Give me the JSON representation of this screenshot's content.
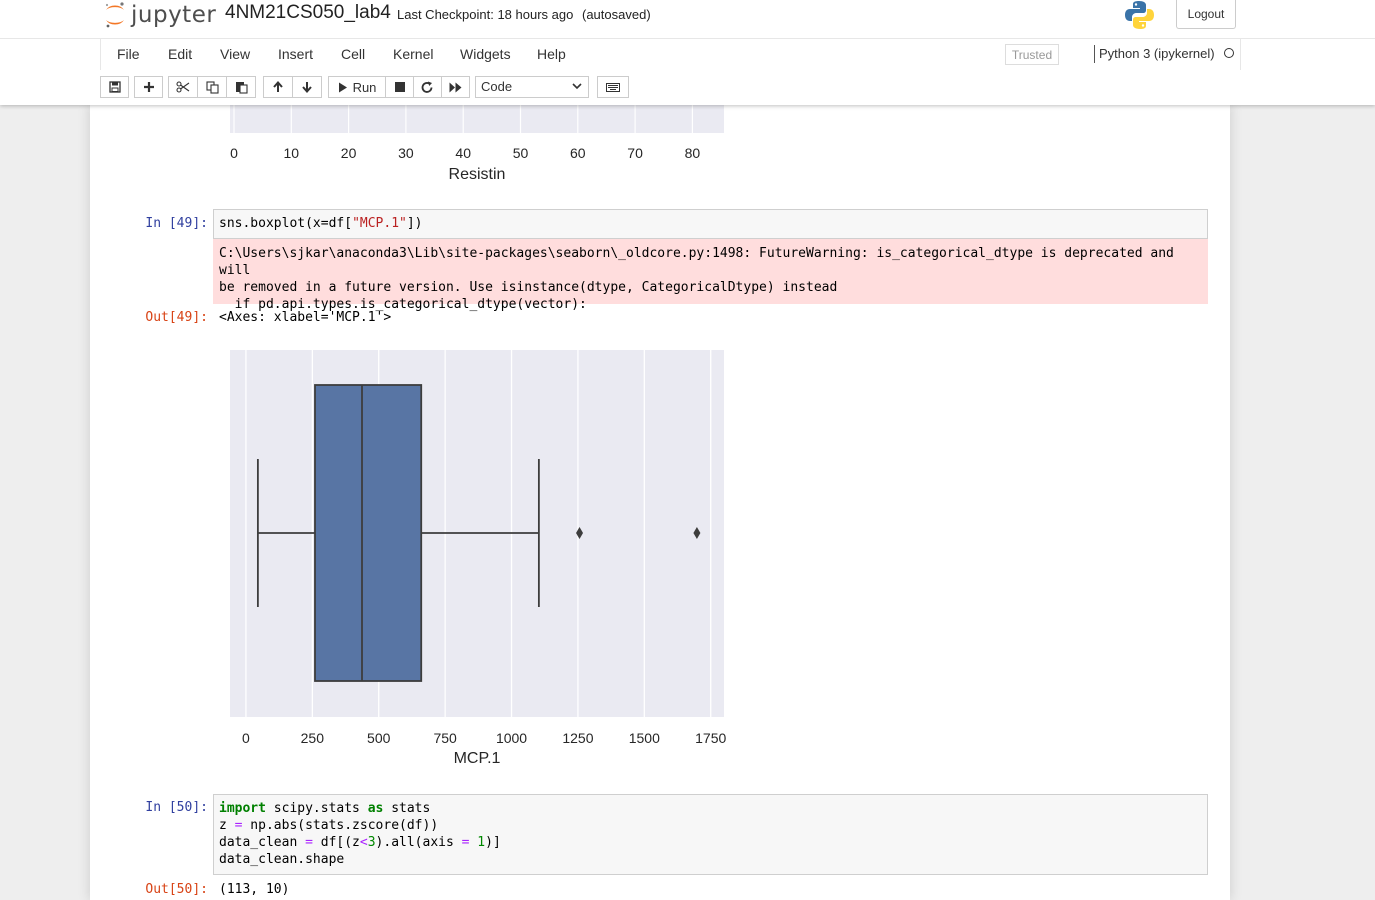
{
  "header": {
    "logo_text": "jupyter",
    "notebook_name": "4NM21CS050_lab4",
    "checkpoint": "Last Checkpoint: 18 hours ago",
    "autosave": "(autosaved)",
    "logout_label": "Logout"
  },
  "menu": {
    "items": [
      "File",
      "Edit",
      "View",
      "Insert",
      "Cell",
      "Kernel",
      "Widgets",
      "Help"
    ],
    "trusted_label": "Trusted",
    "kernel_name": "Python 3 (ipykernel)"
  },
  "toolbar": {
    "run_label": "Run",
    "cell_type_value": "Code",
    "icons": [
      "save-icon",
      "plus-icon",
      "cut-icon",
      "copy-icon",
      "paste-icon",
      "arrow-up-icon",
      "arrow-down-icon",
      "run-icon",
      "stop-icon",
      "restart-icon",
      "fast-forward-icon",
      "keyboard-icon"
    ]
  },
  "prev_plot": {
    "xlabel": "Resistin",
    "ticks": [
      "0",
      "10",
      "20",
      "30",
      "40",
      "50",
      "60",
      "70",
      "80"
    ]
  },
  "cells": [
    {
      "in_prompt": "In [49]:",
      "code_prefix": "sns.boxplot(x=df[",
      "code_string": "\"MCP.1\"",
      "code_suffix": "])",
      "stderr": "C:\\Users\\sjkar\\anaconda3\\Lib\\site-packages\\seaborn\\_oldcore.py:1498: FutureWarning: is_categorical_dtype is deprecated and will\nbe removed in a future version. Use isinstance(dtype, CategoricalDtype) instead\n  if pd.api.types.is_categorical_dtype(vector):",
      "out_prompt": "Out[49]:",
      "out_text": "<Axes: xlabel='MCP.1'>"
    },
    {
      "in_prompt": "In [50]:",
      "out_prompt": "Out[50]:",
      "out_text": "(113, 10)"
    }
  ],
  "chart_data": {
    "type": "boxplot",
    "orientation": "horizontal",
    "xlabel": "MCP.1",
    "xlim": [
      -60,
      1800
    ],
    "x_ticks": [
      0,
      250,
      500,
      750,
      1000,
      1250,
      1500,
      1750
    ],
    "grid": true,
    "box": {
      "whisker_low": 45,
      "q1": 260,
      "median": 437,
      "q3": 660,
      "whisker_high": 1103,
      "outliers": [
        1256,
        1698
      ]
    },
    "box_color": "#5875a4",
    "background": "#eaeaf2"
  }
}
